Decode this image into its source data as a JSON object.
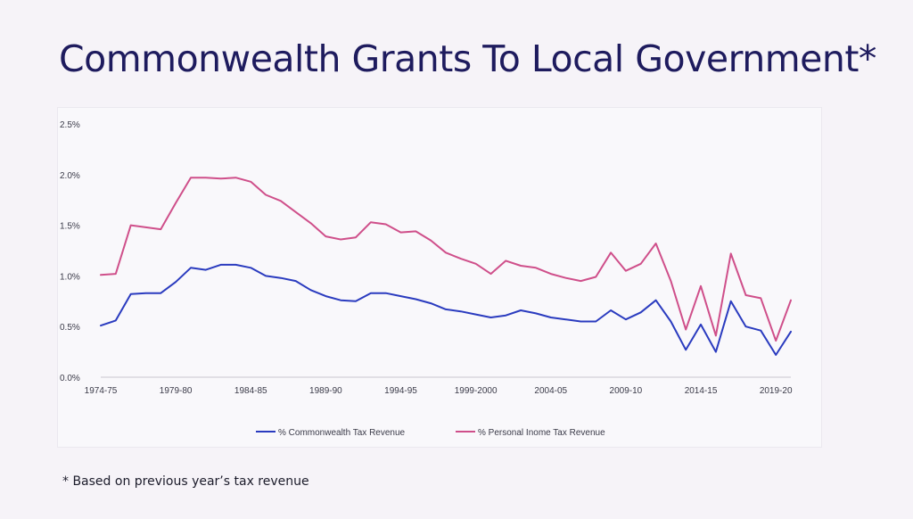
{
  "slide": {
    "title": "Commonwealth Grants To Local Government*",
    "footnote": "* Based on previous year’s tax revenue"
  },
  "chart_data": {
    "type": "line",
    "title": "",
    "xlabel": "",
    "ylabel": "",
    "ylim": [
      0,
      0.025
    ],
    "yticks": [
      0,
      0.005,
      0.01,
      0.015,
      0.02,
      0.025
    ],
    "ytick_labels": [
      "0.0%",
      "0.5%",
      "1.0%",
      "1.5%",
      "2.0%",
      "2.5%"
    ],
    "x": [
      "1974-75",
      "1975-76",
      "1976-77",
      "1977-78",
      "1978-79",
      "1979-80",
      "1980-81",
      "1981-82",
      "1982-83",
      "1983-84",
      "1984-85",
      "1985-86",
      "1986-87",
      "1987-88",
      "1988-89",
      "1989-90",
      "1990-91",
      "1991-92",
      "1992-93",
      "1993-94",
      "1994-95",
      "1995-96",
      "1996-97",
      "1997-98",
      "1998-99",
      "1999-2000",
      "2000-01",
      "2001-02",
      "2002-03",
      "2003-04",
      "2004-05",
      "2005-06",
      "2006-07",
      "2007-08",
      "2008-09",
      "2009-10",
      "2010-11",
      "2011-12",
      "2012-13",
      "2013-14",
      "2014-15",
      "2015-16",
      "2016-17",
      "2017-18",
      "2018-19",
      "2019-20",
      "2020-21"
    ],
    "xtick_labels": [
      "1974-75",
      "1979-80",
      "1984-85",
      "1989-90",
      "1994-95",
      "1999-2000",
      "2004-05",
      "2009-10",
      "2014-15",
      "2019-20"
    ],
    "grid": false,
    "legend_position": "bottom",
    "series": [
      {
        "name": "% Commonwealth Tax Revenue",
        "color": "#2a3bbf",
        "values": [
          0.0051,
          0.0056,
          0.0082,
          0.0083,
          0.0083,
          0.0094,
          0.0108,
          0.0106,
          0.0111,
          0.0111,
          0.0108,
          0.01,
          0.0098,
          0.0095,
          0.0086,
          0.008,
          0.0076,
          0.0075,
          0.0083,
          0.0083,
          0.008,
          0.0077,
          0.0073,
          0.0067,
          0.0065,
          0.0062,
          0.0059,
          0.0061,
          0.0066,
          0.0063,
          0.0059,
          0.0057,
          0.0055,
          0.0055,
          0.0066,
          0.0057,
          0.0064,
          0.0076,
          0.0055,
          0.0027,
          0.0052,
          0.0025,
          0.0075,
          0.005,
          0.0046,
          0.0022,
          0.0045
        ]
      },
      {
        "name": "% Personal Inome Tax Revenue",
        "color": "#cf4f8a",
        "values": [
          0.0101,
          0.0102,
          0.015,
          0.0148,
          0.0146,
          0.0172,
          0.0197,
          0.0197,
          0.0196,
          0.0197,
          0.0193,
          0.018,
          0.0174,
          0.0163,
          0.0152,
          0.0139,
          0.0136,
          0.0138,
          0.0153,
          0.0151,
          0.0143,
          0.0144,
          0.0135,
          0.0123,
          0.0117,
          0.0112,
          0.0102,
          0.0115,
          0.011,
          0.0108,
          0.0102,
          0.0098,
          0.0095,
          0.0099,
          0.0123,
          0.0105,
          0.0112,
          0.0132,
          0.0095,
          0.0047,
          0.009,
          0.0041,
          0.0122,
          0.0081,
          0.0078,
          0.0036,
          0.0076
        ]
      }
    ]
  }
}
